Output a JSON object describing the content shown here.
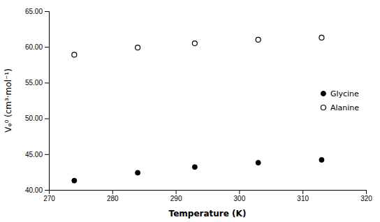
{
  "chart_data": {
    "type": "scatter",
    "xlabel": "Temperature (K)",
    "ylabel": "Vᵩ⁰ (cm³·mol⁻¹)",
    "x": [
      274,
      284,
      293,
      303,
      313
    ],
    "series": [
      {
        "name": "Glycine",
        "color": "#000000",
        "marker": "circle",
        "values": [
          41.3,
          42.4,
          43.2,
          43.8,
          44.2
        ]
      },
      {
        "name": "Alanine",
        "color": "#000000",
        "marker": "circle-open",
        "values": [
          58.9,
          59.9,
          60.5,
          61.0,
          61.3
        ]
      }
    ],
    "xlim": [
      270,
      320
    ],
    "ylim": [
      40.0,
      65.0
    ],
    "xticks": [
      270,
      280,
      290,
      300,
      310,
      320
    ],
    "yticks": [
      {
        "value": 40.0,
        "label": "40.00"
      },
      {
        "value": 45.0,
        "label": "45.00"
      },
      {
        "value": 50.0,
        "label": "50.00"
      },
      {
        "value": 55.0,
        "label": "55.00"
      },
      {
        "value": 60.0,
        "label": "60.00"
      },
      {
        "value": 65.0,
        "label": "65.00"
      }
    ],
    "grid": false,
    "legend": "right"
  }
}
